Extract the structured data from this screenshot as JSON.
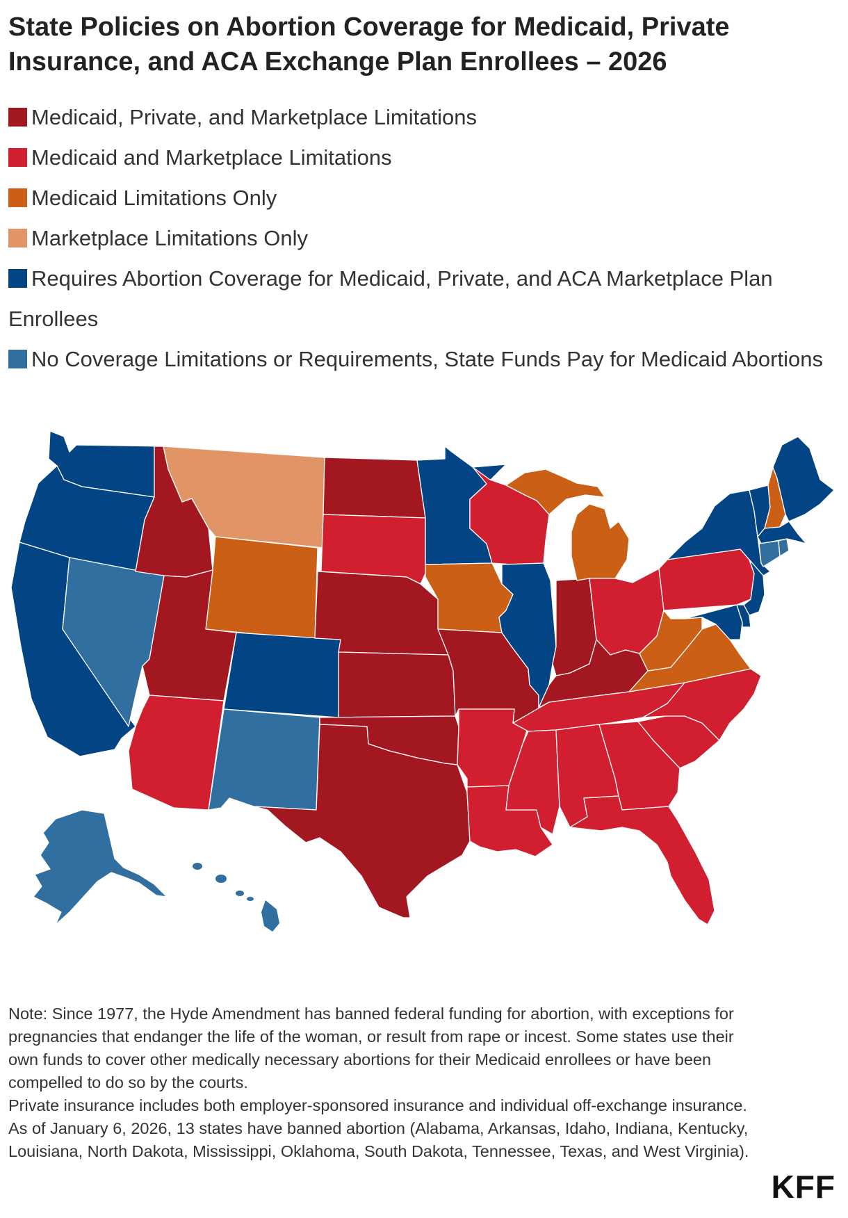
{
  "title": "State Policies on Abortion Coverage for Medicaid, Private Insurance, and ACA Exchange Plan Enrollees – 2026",
  "colors": {
    "mpm": "#a31720",
    "mm": "#d21f2f",
    "medicaid_only": "#cc5f16",
    "marketplace_only": "#e19566",
    "requires": "#034584",
    "no_limits": "#316fa1"
  },
  "legend": [
    {
      "label": "Medicaid, Private, and Marketplace Limitations",
      "color": "#a31720"
    },
    {
      "label": "Medicaid and Marketplace Limitations",
      "color": "#d21f2f"
    },
    {
      "label": "Medicaid Limitations Only",
      "color": "#cc5f16"
    },
    {
      "label": "Marketplace Limitations Only",
      "color": "#e19566"
    },
    {
      "label": "Requires Abortion Coverage for Medicaid, Private, and ACA Marketplace Plan Enrollees",
      "color": "#034584"
    },
    {
      "label": "No Coverage Limitations or Requirements, State Funds Pay for Medicaid Abortions",
      "color": "#316fa1"
    }
  ],
  "notes": [
    "Note: Since 1977, the Hyde Amendment has banned federal funding for abortion, with exceptions for pregnancies that endanger the life of the woman, or result from rape or incest. Some states use their own funds to cover other medically necessary abortions for their Medicaid enrollees or have been compelled to do so by the courts.",
    "Private insurance includes both employer-sponsored insurance and individual off-exchange insurance.",
    "As of January 6, 2026, 13 states have banned abortion (Alabama, Arkansas, Idaho, Indiana, Kentucky, Louisiana, North Dakota, Mississippi, Oklahoma, South Dakota, Tennessee, Texas, and West Virginia)."
  ],
  "logo": "KFF"
}
